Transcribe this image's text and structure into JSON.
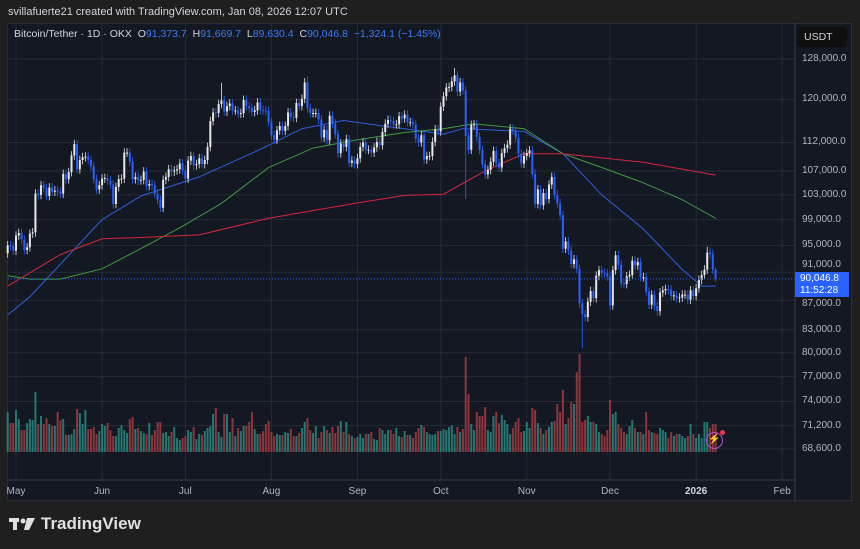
{
  "header": {
    "credit": "svillafuerte21 created with TradingView.com, Jan 08, 2026 12:07 UTC"
  },
  "legend": {
    "symbol": "Bitcoin/Tether · 1D · OKX",
    "o_label": "O",
    "o": "91,373.7",
    "h_label": "H",
    "h": "91,669.7",
    "l_label": "L",
    "l": "89,630.4",
    "c_label": "C",
    "c": "90,046.8",
    "change": "−1,324.1 (−1.45%)"
  },
  "price_axis": {
    "unit": "USDT",
    "current_price": "90,046.8",
    "countdown": "11:52:28"
  },
  "brand": {
    "name": "TradingView"
  },
  "colors": {
    "up": "#e8e8e8",
    "down": "#2962ff",
    "vol_up": "#26897f",
    "vol_down": "#a23b3f",
    "ma_blue": "#2f5fe0",
    "ma_green": "#3f9a3f",
    "ma_red": "#d1273b",
    "accent": "#2962ff"
  },
  "icons": {
    "alert": "lightning-bolt-icon",
    "logo": "tradingview-logo-icon"
  },
  "chart_data": {
    "type": "candlestick",
    "scale": "log",
    "grid": true,
    "ylim": [
      66000,
      131000
    ],
    "y_ticks": [
      128000,
      120000,
      112000,
      107000,
      103000,
      99000,
      95000,
      91000,
      87000,
      83000,
      80000,
      77000,
      74000,
      71200,
      68600
    ],
    "y_tick_labels": [
      "128,000.0",
      "120,000.0",
      "112,000.0",
      "107,000.0",
      "103,000.0",
      "99,000.0",
      "95,000.0",
      "91,000.0",
      "87,000.0",
      "83,000.0",
      "80,000.0",
      "77,000.0",
      "74,000.0",
      "71,200.0",
      "68,600.0"
    ],
    "x_ticks": [
      {
        "date": "2025-05-01",
        "label": "May"
      },
      {
        "date": "2025-06-01",
        "label": "Jun"
      },
      {
        "date": "2025-07-01",
        "label": "Jul"
      },
      {
        "date": "2025-08-01",
        "label": "Aug"
      },
      {
        "date": "2025-09-01",
        "label": "Sep"
      },
      {
        "date": "2025-10-01",
        "label": "Oct"
      },
      {
        "date": "2025-11-01",
        "label": "Nov"
      },
      {
        "date": "2025-12-01",
        "label": "Dec"
      },
      {
        "date": "2026-01-01",
        "label": "2026",
        "bold": true
      },
      {
        "date": "2026-02-01",
        "label": "Feb"
      }
    ],
    "first_candle_date": "2025-04-28",
    "first_open": 93800,
    "closes": [
      95000,
      94900,
      94200,
      96500,
      96900,
      95900,
      94300,
      94700,
      96800,
      97000,
      103200,
      103000,
      104600,
      104100,
      102800,
      104200,
      103500,
      103700,
      103500,
      103200,
      106500,
      105600,
      106800,
      109700,
      111700,
      107300,
      108900,
      109400,
      109500,
      108900,
      107800,
      105600,
      103900,
      104600,
      105700,
      105800,
      105400,
      104700,
      101500,
      104300,
      105600,
      105700,
      110200,
      110200,
      108600,
      105600,
      106000,
      105400,
      105500,
      106900,
      104500,
      104800,
      104600,
      103200,
      102200,
      100900,
      105500,
      106000,
      107300,
      106900,
      107100,
      107300,
      108300,
      107100,
      105700,
      108800,
      109600,
      108000,
      108200,
      109200,
      108200,
      108900,
      111200,
      115900,
      117500,
      117400,
      119100,
      119800,
      117700,
      118700,
      119200,
      117900,
      117900,
      117300,
      117400,
      119900,
      118700,
      118300,
      117600,
      117900,
      119400,
      118000,
      117900,
      117800,
      115700,
      113300,
      112500,
      114200,
      115000,
      114100,
      115000,
      117500,
      116700,
      116500,
      119300,
      118700,
      120100,
      123300,
      118300,
      117400,
      117400,
      117400,
      116200,
      112900,
      114300,
      112400,
      116900,
      115400,
      113500,
      110100,
      111800,
      111200,
      112600,
      108400,
      108800,
      108200,
      109200,
      111200,
      112000,
      110700,
      110700,
      110200,
      111100,
      112100,
      111500,
      113900,
      115400,
      116100,
      115900,
      115300,
      115300,
      116800,
      116400,
      117100,
      115700,
      115700,
      115300,
      112700,
      112000,
      113300,
      109000,
      109600,
      109600,
      112100,
      114400,
      114000,
      118600,
      120600,
      122300,
      122400,
      123500,
      124700,
      121500,
      123300,
      121700,
      113200,
      110700,
      115200,
      115300,
      113000,
      110700,
      108200,
      106400,
      107200,
      108600,
      110500,
      108400,
      107600,
      110100,
      111000,
      111600,
      114500,
      114100,
      112900,
      110000,
      108300,
      109600,
      110100,
      110600,
      106500,
      101500,
      103900,
      101300,
      103300,
      102300,
      104700,
      106000,
      103000,
      101600,
      99700,
      94500,
      95600,
      94200,
      92200,
      92900,
      91500,
      86600,
      85100,
      84700,
      86800,
      88300,
      87300,
      90500,
      91300,
      90900,
      90800,
      90400,
      86300,
      91300,
      93500,
      92100,
      89400,
      89300,
      90400,
      90600,
      92700,
      92000,
      92500,
      90300,
      90300,
      88200,
      86400,
      87800,
      86200,
      85500,
      88100,
      88400,
      88600,
      88500,
      87600,
      87700,
      87300,
      87400,
      87800,
      87800,
      87100,
      88400,
      87600,
      88700,
      89900,
      90600,
      91400,
      93900,
      93700,
      91370,
      90046.8
    ],
    "wick_extremes": [
      {
        "date": "2025-10-06",
        "high": 126200
      },
      {
        "date": "2025-10-10",
        "low": 102300
      },
      {
        "date": "2025-11-21",
        "low": 80600
      },
      {
        "date": "2025-07-14",
        "high": 123200
      },
      {
        "date": "2025-08-14",
        "high": 124500
      },
      {
        "date": "2026-01-05",
        "high": 94800
      },
      {
        "date": "2026-01-08",
        "high": 91669.7,
        "low": 89630.4
      }
    ],
    "volume": [
      40,
      29,
      29,
      42,
      33,
      22,
      22,
      29,
      33,
      32,
      60,
      28,
      36,
      28,
      34,
      28,
      26,
      26,
      40,
      32,
      33,
      17,
      17,
      18,
      23,
      43,
      39,
      28,
      42,
      23,
      23,
      25,
      18,
      21,
      28,
      26,
      29,
      22,
      16,
      16,
      24,
      27,
      22,
      19,
      33,
      35,
      23,
      24,
      21,
      19,
      18,
      29,
      17,
      22,
      30,
      30,
      19,
      20,
      16,
      20,
      25,
      14,
      12,
      14,
      16,
      22,
      20,
      25,
      13,
      18,
      17,
      21,
      24,
      26,
      38,
      44,
      20,
      15,
      38,
      38,
      20,
      34,
      16,
      24,
      21,
      26,
      26,
      30,
      40,
      23,
      18,
      18,
      21,
      28,
      31,
      20,
      16,
      18,
      17,
      17,
      20,
      19,
      23,
      16,
      16,
      19,
      24,
      30,
      34,
      22,
      19,
      26,
      14,
      20,
      26,
      22,
      19,
      25,
      19,
      26,
      31,
      20,
      30,
      18,
      16,
      14,
      15,
      18,
      14,
      18,
      18,
      20,
      13,
      12,
      24,
      22,
      18,
      22,
      22,
      18,
      24,
      16,
      15,
      21,
      17,
      17,
      14,
      20,
      24,
      27,
      25,
      20,
      18,
      17,
      18,
      21,
      21,
      23,
      22,
      25,
      27,
      18,
      25,
      20,
      23,
      95,
      58,
      28,
      22,
      40,
      36,
      36,
      45,
      22,
      20,
      36,
      40,
      29,
      37,
      32,
      28,
      18,
      24,
      30,
      34,
      20,
      21,
      30,
      24,
      44,
      42,
      29,
      24,
      18,
      22,
      25,
      30,
      31,
      48,
      40,
      62,
      28,
      34,
      50,
      48,
      80,
      98,
      30,
      32,
      36,
      30,
      30,
      28,
      20,
      18,
      16,
      22,
      52,
      38,
      40,
      28,
      24,
      20,
      18,
      26,
      32,
      24,
      20,
      20,
      18,
      40,
      22,
      20,
      19,
      18,
      24,
      22,
      20,
      14,
      20,
      16,
      18,
      18,
      16,
      14,
      16,
      28,
      18,
      14,
      18,
      14,
      30,
      30,
      24,
      28,
      28
    ],
    "moving_averages": [
      {
        "color": "#2f5fe0",
        "points": [
          [
            "2025-04-28",
            85000
          ],
          [
            "2025-05-06",
            87500
          ],
          [
            "2025-06-01",
            99000
          ],
          [
            "2025-06-15",
            102800
          ],
          [
            "2025-07-06",
            106000
          ],
          [
            "2025-07-29",
            111000
          ],
          [
            "2025-08-12",
            114500
          ],
          [
            "2025-08-27",
            116000
          ],
          [
            "2025-09-10",
            115000
          ],
          [
            "2025-09-18",
            114500
          ],
          [
            "2025-10-02",
            113500
          ],
          [
            "2025-10-09",
            114500
          ],
          [
            "2025-10-31",
            114000
          ],
          [
            "2025-11-14",
            110000
          ],
          [
            "2025-11-28",
            103000
          ],
          [
            "2025-12-13",
            97500
          ],
          [
            "2025-12-27",
            91400
          ],
          [
            "2026-01-03",
            89000
          ],
          [
            "2026-01-08",
            89000
          ]
        ]
      },
      {
        "color": "#3f9a3f",
        "points": [
          [
            "2025-04-28",
            90500
          ],
          [
            "2025-05-06",
            90000
          ],
          [
            "2025-05-17",
            90000
          ],
          [
            "2025-06-01",
            91500
          ],
          [
            "2025-06-15",
            94500
          ],
          [
            "2025-06-29",
            97700
          ],
          [
            "2025-07-14",
            101600
          ],
          [
            "2025-07-31",
            107600
          ],
          [
            "2025-08-16",
            111000
          ],
          [
            "2025-08-31",
            112400
          ],
          [
            "2025-09-18",
            113800
          ],
          [
            "2025-10-02",
            114500
          ],
          [
            "2025-10-13",
            115400
          ],
          [
            "2025-10-31",
            114500
          ],
          [
            "2025-11-14",
            110000
          ],
          [
            "2025-11-28",
            107600
          ],
          [
            "2025-12-13",
            105000
          ],
          [
            "2025-12-27",
            102200
          ],
          [
            "2026-01-08",
            99200
          ]
        ]
      },
      {
        "color": "#d1273b",
        "points": [
          [
            "2025-04-28",
            89000
          ],
          [
            "2025-05-17",
            93600
          ],
          [
            "2025-06-01",
            96000
          ],
          [
            "2025-06-15",
            96200
          ],
          [
            "2025-07-06",
            96600
          ],
          [
            "2025-07-31",
            99200
          ],
          [
            "2025-08-31",
            101600
          ],
          [
            "2025-09-18",
            102900
          ],
          [
            "2025-10-02",
            103100
          ],
          [
            "2025-10-17",
            107000
          ],
          [
            "2025-10-31",
            110000
          ],
          [
            "2025-11-14",
            110000
          ],
          [
            "2025-12-13",
            108500
          ],
          [
            "2026-01-08",
            106300
          ]
        ]
      }
    ]
  }
}
